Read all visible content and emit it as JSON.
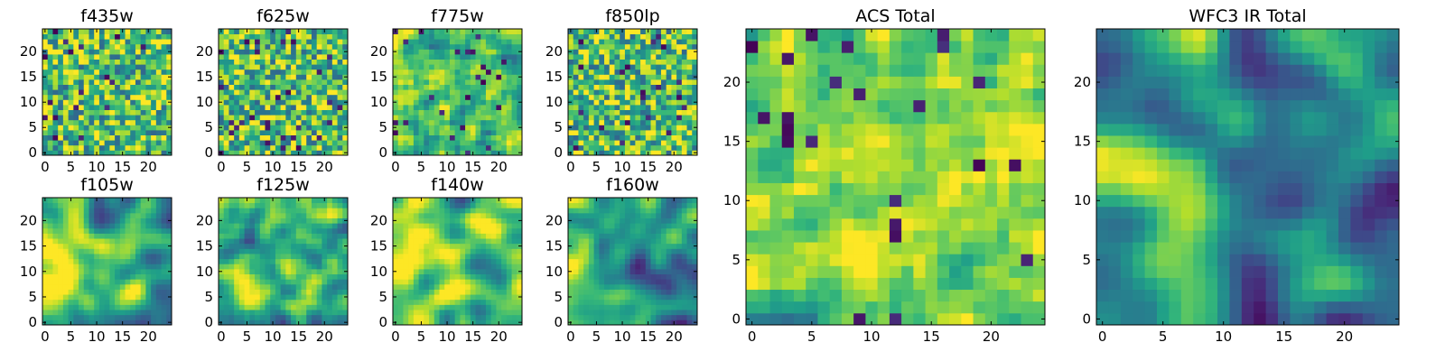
{
  "chart_data": [
    {
      "id": "f435w",
      "type": "heatmap",
      "title": "f435w",
      "xlim": [
        0,
        25
      ],
      "ylim": [
        0,
        25
      ],
      "xticks": [
        0,
        5,
        10,
        15,
        20
      ],
      "yticks": [
        0,
        5,
        10,
        15,
        20
      ],
      "colormap": "viridis",
      "grid_size": [
        25,
        25
      ],
      "texture": "noise",
      "level": 0.7,
      "smooth": 0.0,
      "seed": 11
    },
    {
      "id": "f625w",
      "type": "heatmap",
      "title": "f625w",
      "xlim": [
        0,
        25
      ],
      "ylim": [
        0,
        25
      ],
      "xticks": [
        0,
        5,
        10,
        15,
        20
      ],
      "yticks": [
        0,
        5,
        10,
        15,
        20
      ],
      "colormap": "viridis",
      "grid_size": [
        25,
        25
      ],
      "texture": "noise",
      "level": 0.7,
      "smooth": 0.0,
      "seed": 23
    },
    {
      "id": "f775w",
      "type": "heatmap",
      "title": "f775w",
      "xlim": [
        0,
        25
      ],
      "ylim": [
        0,
        25
      ],
      "xticks": [
        0,
        5,
        10,
        15,
        20
      ],
      "yticks": [
        0,
        5,
        10,
        15,
        20
      ],
      "colormap": "viridis",
      "grid_size": [
        25,
        25
      ],
      "texture": "noise",
      "level": 0.72,
      "smooth": 0.1,
      "seed": 37
    },
    {
      "id": "f850lp",
      "type": "heatmap",
      "title": "f850lp",
      "xlim": [
        0,
        25
      ],
      "ylim": [
        0,
        25
      ],
      "xticks": [
        0,
        5,
        10,
        15,
        20
      ],
      "yticks": [
        0,
        5,
        10,
        15,
        20
      ],
      "colormap": "viridis",
      "grid_size": [
        25,
        25
      ],
      "texture": "noise",
      "level": 0.7,
      "smooth": 0.0,
      "seed": 41
    },
    {
      "id": "f105w",
      "type": "heatmap",
      "title": "f105w",
      "xlim": [
        0,
        25
      ],
      "ylim": [
        0,
        25
      ],
      "xticks": [
        0,
        5,
        10,
        15,
        20
      ],
      "yticks": [
        0,
        5,
        10,
        15,
        20
      ],
      "colormap": "viridis",
      "grid_size": [
        25,
        25
      ],
      "texture": "smooth",
      "level": 0.65,
      "smooth": 0.5,
      "seed": 53
    },
    {
      "id": "f125w",
      "type": "heatmap",
      "title": "f125w",
      "xlim": [
        0,
        25
      ],
      "ylim": [
        0,
        25
      ],
      "xticks": [
        0,
        5,
        10,
        15,
        20
      ],
      "yticks": [
        0,
        5,
        10,
        15,
        20
      ],
      "colormap": "viridis",
      "grid_size": [
        25,
        25
      ],
      "texture": "smooth",
      "level": 0.6,
      "smooth": 0.4,
      "seed": 67
    },
    {
      "id": "f140w",
      "type": "heatmap",
      "title": "f140w",
      "xlim": [
        0,
        25
      ],
      "ylim": [
        0,
        25
      ],
      "xticks": [
        0,
        5,
        10,
        15,
        20
      ],
      "yticks": [
        0,
        5,
        10,
        15,
        20
      ],
      "colormap": "viridis",
      "grid_size": [
        25,
        25
      ],
      "texture": "smooth",
      "level": 0.68,
      "smooth": 0.5,
      "seed": 71
    },
    {
      "id": "f160w",
      "type": "heatmap",
      "title": "f160w",
      "xlim": [
        0,
        25
      ],
      "ylim": [
        0,
        25
      ],
      "xticks": [
        0,
        5,
        10,
        15,
        20
      ],
      "yticks": [
        0,
        5,
        10,
        15,
        20
      ],
      "colormap": "viridis",
      "grid_size": [
        25,
        25
      ],
      "texture": "smooth",
      "level": 0.55,
      "smooth": 0.45,
      "seed": 83
    },
    {
      "id": "acs-total",
      "type": "heatmap",
      "title": "ACS Total",
      "xlim": [
        0,
        25
      ],
      "ylim": [
        0,
        25
      ],
      "xticks": [
        0,
        5,
        10,
        15,
        20
      ],
      "yticks": [
        0,
        5,
        10,
        15,
        20
      ],
      "colormap": "viridis",
      "grid_size": [
        25,
        25
      ],
      "texture": "noise",
      "level": 0.74,
      "smooth": 0.15,
      "seed": 97
    },
    {
      "id": "wfc3-ir-total",
      "type": "heatmap",
      "title": "WFC3 IR Total",
      "xlim": [
        0,
        25
      ],
      "ylim": [
        0,
        25
      ],
      "xticks": [
        0,
        5,
        10,
        15,
        20
      ],
      "yticks": [
        0,
        5,
        10,
        15,
        20
      ],
      "colormap": "viridis",
      "grid_size": [
        25,
        25
      ],
      "texture": "smooth",
      "level": 0.5,
      "smooth": 0.55,
      "seed": 101
    }
  ]
}
